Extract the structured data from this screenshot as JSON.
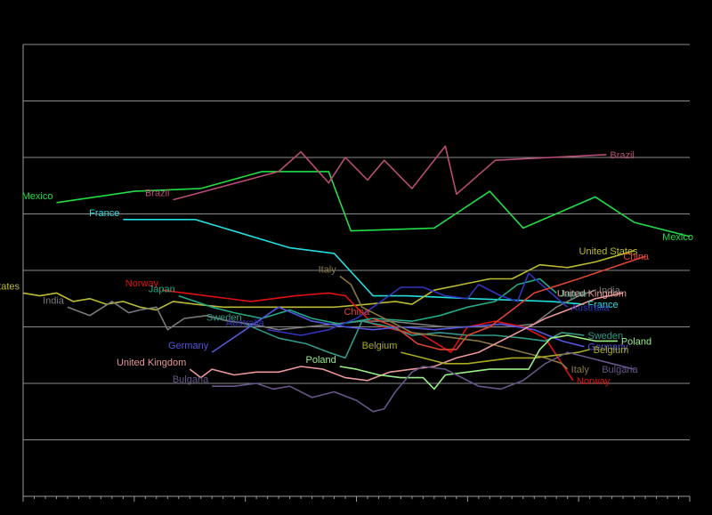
{
  "chart_data": {
    "type": "line",
    "title": "",
    "xlabel": "",
    "ylabel": "",
    "x_range": [
      0,
      120
    ],
    "y_range": [
      0,
      8
    ],
    "grid": "horizontal",
    "legend": "inline labels",
    "colors": {
      "background": "#000000",
      "grid": "#8a8a8a",
      "axis": "#9a9a9a"
    },
    "series": [
      {
        "name": "Mexico",
        "color": "#22dd44",
        "label_left": "Mexico",
        "label_right": "Mexico",
        "points": [
          [
            6,
            5.2
          ],
          [
            20,
            5.4
          ],
          [
            32,
            5.45
          ],
          [
            43,
            5.75
          ],
          [
            55,
            5.75
          ],
          [
            59,
            4.7
          ],
          [
            74,
            4.75
          ],
          [
            84,
            5.4
          ],
          [
            90,
            4.75
          ],
          [
            103,
            5.3
          ],
          [
            110,
            4.85
          ],
          [
            120,
            4.6
          ]
        ]
      },
      {
        "name": "Brazil",
        "color": "#b84d77",
        "label_left": "Brazil",
        "label_right": "Brazil",
        "points": [
          [
            27,
            5.25
          ],
          [
            46,
            5.75
          ],
          [
            50,
            6.1
          ],
          [
            55,
            5.55
          ],
          [
            58,
            6.0
          ],
          [
            62,
            5.6
          ],
          [
            65,
            5.95
          ],
          [
            70,
            5.45
          ],
          [
            76,
            6.2
          ],
          [
            78,
            5.35
          ],
          [
            85,
            5.95
          ],
          [
            105,
            6.05
          ]
        ]
      },
      {
        "name": "France",
        "color": "#22dddd",
        "label_left": "France",
        "label_right": "France",
        "points": [
          [
            18,
            4.9
          ],
          [
            31,
            4.9
          ],
          [
            48,
            4.4
          ],
          [
            56,
            4.3
          ],
          [
            63,
            3.55
          ],
          [
            69,
            3.55
          ],
          [
            81,
            3.5
          ],
          [
            95,
            3.45
          ],
          [
            101,
            3.4
          ]
        ]
      },
      {
        "name": "United States",
        "color": "#bbbb33",
        "label_left": "United States",
        "label_right": "United States",
        "points": [
          [
            0,
            3.6
          ],
          [
            3,
            3.55
          ],
          [
            6,
            3.6
          ],
          [
            9,
            3.45
          ],
          [
            12,
            3.5
          ],
          [
            15,
            3.4
          ],
          [
            18,
            3.45
          ],
          [
            21,
            3.35
          ],
          [
            24,
            3.3
          ],
          [
            27,
            3.45
          ],
          [
            31,
            3.4
          ],
          [
            36,
            3.35
          ],
          [
            40,
            3.35
          ],
          [
            45,
            3.35
          ],
          [
            51,
            3.35
          ],
          [
            56,
            3.35
          ],
          [
            62,
            3.4
          ],
          [
            67,
            3.45
          ],
          [
            70,
            3.4
          ],
          [
            74,
            3.65
          ],
          [
            79,
            3.75
          ],
          [
            84,
            3.85
          ],
          [
            88,
            3.85
          ],
          [
            93,
            4.1
          ],
          [
            98,
            4.05
          ],
          [
            103,
            4.15
          ],
          [
            110,
            4.35
          ]
        ]
      },
      {
        "name": "India",
        "color": "#7a7a7a",
        "label_left": "India",
        "label_right": "India",
        "points": [
          [
            8,
            3.35
          ],
          [
            12,
            3.2
          ],
          [
            16,
            3.45
          ],
          [
            19,
            3.25
          ],
          [
            21,
            3.3
          ],
          [
            24,
            3.35
          ],
          [
            26,
            2.95
          ],
          [
            29,
            3.15
          ],
          [
            33,
            3.2
          ],
          [
            37,
            3.1
          ],
          [
            41,
            3.05
          ],
          [
            46,
            2.95
          ],
          [
            51,
            3.0
          ],
          [
            56,
            3.05
          ],
          [
            61,
            3.1
          ],
          [
            66,
            3.1
          ],
          [
            71,
            3.05
          ],
          [
            76,
            3.0
          ],
          [
            81,
            3.0
          ],
          [
            87,
            3.0
          ],
          [
            92,
            3.05
          ],
          [
            96,
            3.35
          ],
          [
            100,
            3.55
          ],
          [
            103,
            3.65
          ]
        ]
      },
      {
        "name": "Norway",
        "color": "#e01010",
        "label_left": "Norway",
        "label_right": "Norway",
        "points": [
          [
            25,
            3.65
          ],
          [
            33,
            3.55
          ],
          [
            41,
            3.45
          ],
          [
            49,
            3.55
          ],
          [
            55,
            3.6
          ],
          [
            58,
            3.55
          ],
          [
            63,
            3.05
          ],
          [
            67,
            2.95
          ],
          [
            72,
            2.85
          ],
          [
            77,
            2.55
          ],
          [
            80,
            3.0
          ],
          [
            85,
            3.1
          ],
          [
            90,
            3.0
          ],
          [
            94,
            2.8
          ],
          [
            97,
            2.35
          ],
          [
            99,
            2.05
          ]
        ]
      },
      {
        "name": "Japan",
        "color": "#22aa88",
        "label_left": "Japan",
        "label_right": "Japan",
        "points": [
          [
            28,
            3.55
          ],
          [
            34,
            3.35
          ],
          [
            38,
            3.25
          ],
          [
            43,
            3.15
          ],
          [
            48,
            3.3
          ],
          [
            52,
            3.15
          ],
          [
            57,
            3.05
          ],
          [
            63,
            3.15
          ],
          [
            70,
            3.1
          ],
          [
            75,
            3.2
          ],
          [
            80,
            3.35
          ],
          [
            85,
            3.45
          ],
          [
            89,
            3.75
          ],
          [
            93,
            3.85
          ],
          [
            96,
            3.6
          ]
        ]
      },
      {
        "name": "Sweden",
        "color": "#339988",
        "label_left": "Sweden",
        "label_right": "Sweden",
        "points": [
          [
            40,
            3.05
          ],
          [
            46,
            2.8
          ],
          [
            51,
            2.7
          ],
          [
            55,
            2.55
          ],
          [
            58,
            2.45
          ],
          [
            61,
            3.1
          ],
          [
            66,
            3.0
          ],
          [
            70,
            2.85
          ],
          [
            75,
            2.9
          ],
          [
            80,
            2.85
          ],
          [
            85,
            2.85
          ],
          [
            90,
            2.8
          ],
          [
            94,
            2.75
          ],
          [
            97,
            2.9
          ],
          [
            101,
            2.85
          ]
        ]
      },
      {
        "name": "Australia",
        "color": "#3333bb",
        "label_left": "Australia",
        "label_right": "Australia",
        "points": [
          [
            44,
            2.95
          ],
          [
            50,
            2.85
          ],
          [
            55,
            2.95
          ],
          [
            60,
            3.15
          ],
          [
            63,
            3.35
          ],
          [
            68,
            3.7
          ],
          [
            72,
            3.7
          ],
          [
            76,
            3.55
          ],
          [
            80,
            3.5
          ],
          [
            82,
            3.75
          ],
          [
            86,
            3.55
          ],
          [
            89,
            3.45
          ],
          [
            91,
            3.95
          ],
          [
            95,
            3.6
          ],
          [
            98,
            3.35
          ]
        ]
      },
      {
        "name": "Germany",
        "color": "#5555dd",
        "label_left": "Germany",
        "label_right": "Germany",
        "points": [
          [
            34,
            2.55
          ],
          [
            40,
            2.95
          ],
          [
            46,
            3.35
          ],
          [
            52,
            3.1
          ],
          [
            58,
            3.0
          ],
          [
            63,
            2.95
          ],
          [
            68,
            3.0
          ],
          [
            74,
            2.95
          ],
          [
            80,
            3.0
          ],
          [
            86,
            3.05
          ],
          [
            92,
            2.95
          ],
          [
            97,
            2.75
          ],
          [
            101,
            2.65
          ]
        ]
      },
      {
        "name": "China",
        "color": "#dd4433",
        "label_left": "China",
        "label_right": "China",
        "points": [
          [
            63,
            3.15
          ],
          [
            67,
            3.0
          ],
          [
            71,
            2.7
          ],
          [
            75,
            2.6
          ],
          [
            78,
            2.6
          ],
          [
            80,
            2.85
          ],
          [
            84,
            3.0
          ],
          [
            88,
            3.3
          ],
          [
            92,
            3.6
          ],
          [
            100,
            3.85
          ],
          [
            106,
            4.05
          ],
          [
            112,
            4.25
          ]
        ]
      },
      {
        "name": "Italy",
        "color": "#887744",
        "label_left": "Italy",
        "label_right": "Italy",
        "points": [
          [
            57,
            3.9
          ],
          [
            59,
            3.75
          ],
          [
            61,
            3.35
          ],
          [
            64,
            3.2
          ],
          [
            67,
            3.05
          ],
          [
            70,
            2.9
          ],
          [
            74,
            2.85
          ],
          [
            78,
            2.8
          ],
          [
            82,
            2.75
          ],
          [
            86,
            2.65
          ],
          [
            90,
            2.55
          ],
          [
            94,
            2.45
          ],
          [
            97,
            2.35
          ],
          [
            98,
            2.25
          ]
        ]
      },
      {
        "name": "United Kingdom",
        "color": "#e89898",
        "label_left": "United Kingdom",
        "label_right": "United Kingdom",
        "points": [
          [
            30,
            2.25
          ],
          [
            32,
            2.1
          ],
          [
            34,
            2.25
          ],
          [
            38,
            2.15
          ],
          [
            42,
            2.2
          ],
          [
            46,
            2.2
          ],
          [
            50,
            2.3
          ],
          [
            54,
            2.25
          ],
          [
            58,
            2.1
          ],
          [
            62,
            2.05
          ],
          [
            66,
            2.2
          ],
          [
            70,
            2.25
          ],
          [
            74,
            2.3
          ],
          [
            78,
            2.45
          ],
          [
            82,
            2.55
          ],
          [
            86,
            2.75
          ],
          [
            90,
            2.95
          ],
          [
            94,
            3.15
          ],
          [
            98,
            3.3
          ],
          [
            103,
            3.5
          ],
          [
            108,
            3.6
          ]
        ]
      },
      {
        "name": "Belgium",
        "color": "#aaaa22",
        "label_left": "Belgium",
        "label_right": "Belgium",
        "points": [
          [
            68,
            2.55
          ],
          [
            72,
            2.45
          ],
          [
            76,
            2.35
          ],
          [
            80,
            2.35
          ],
          [
            84,
            2.4
          ],
          [
            88,
            2.45
          ],
          [
            92,
            2.45
          ],
          [
            96,
            2.5
          ],
          [
            100,
            2.55
          ],
          [
            102,
            2.6
          ]
        ]
      },
      {
        "name": "Poland",
        "color": "#99ee88",
        "label_left": "Poland",
        "label_right": "Poland",
        "points": [
          [
            57,
            2.3
          ],
          [
            60,
            2.25
          ],
          [
            64,
            2.15
          ],
          [
            68,
            2.1
          ],
          [
            72,
            2.1
          ],
          [
            74,
            1.9
          ],
          [
            76,
            2.15
          ],
          [
            80,
            2.2
          ],
          [
            84,
            2.25
          ],
          [
            88,
            2.25
          ],
          [
            91,
            2.25
          ],
          [
            93,
            2.6
          ],
          [
            95,
            2.8
          ],
          [
            98,
            2.85
          ],
          [
            103,
            2.75
          ],
          [
            107,
            2.75
          ]
        ]
      },
      {
        "name": "Bulgaria",
        "color": "#665588",
        "label_left": "Bulgaria",
        "label_right": "Bulgaria",
        "points": [
          [
            34,
            1.95
          ],
          [
            38,
            1.95
          ],
          [
            42,
            2.0
          ],
          [
            45,
            1.9
          ],
          [
            48,
            1.95
          ],
          [
            52,
            1.75
          ],
          [
            56,
            1.85
          ],
          [
            60,
            1.7
          ],
          [
            63,
            1.5
          ],
          [
            65,
            1.55
          ],
          [
            67,
            1.85
          ],
          [
            70,
            2.2
          ],
          [
            72,
            2.3
          ],
          [
            76,
            2.25
          ],
          [
            79,
            2.1
          ],
          [
            82,
            1.95
          ],
          [
            86,
            1.9
          ],
          [
            90,
            2.05
          ],
          [
            94,
            2.35
          ],
          [
            98,
            2.55
          ],
          [
            102,
            2.45
          ],
          [
            106,
            2.35
          ],
          [
            110,
            2.25
          ]
        ]
      }
    ]
  }
}
